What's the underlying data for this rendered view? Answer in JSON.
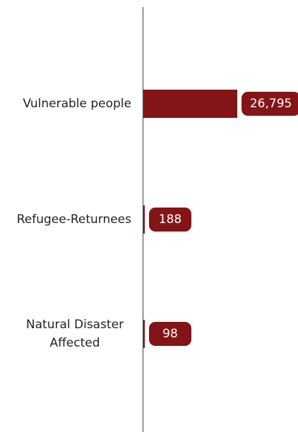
{
  "chart_data": {
    "type": "bar",
    "orientation": "horizontal",
    "categories": [
      [
        "Vulnerable people"
      ],
      [
        "Refugee-Returnees"
      ],
      [
        "Natural Disaster",
        "Affected"
      ]
    ],
    "values": [
      26795,
      188,
      98
    ],
    "value_labels": [
      "26,795",
      "188",
      "98"
    ],
    "xlim": [
      0,
      26795
    ],
    "colors": {
      "bar": "#831517",
      "badge": "#831517",
      "axis": "#555555",
      "label": "#222222",
      "badge_text": "#ffffff"
    },
    "grid": false,
    "legend": "none"
  }
}
